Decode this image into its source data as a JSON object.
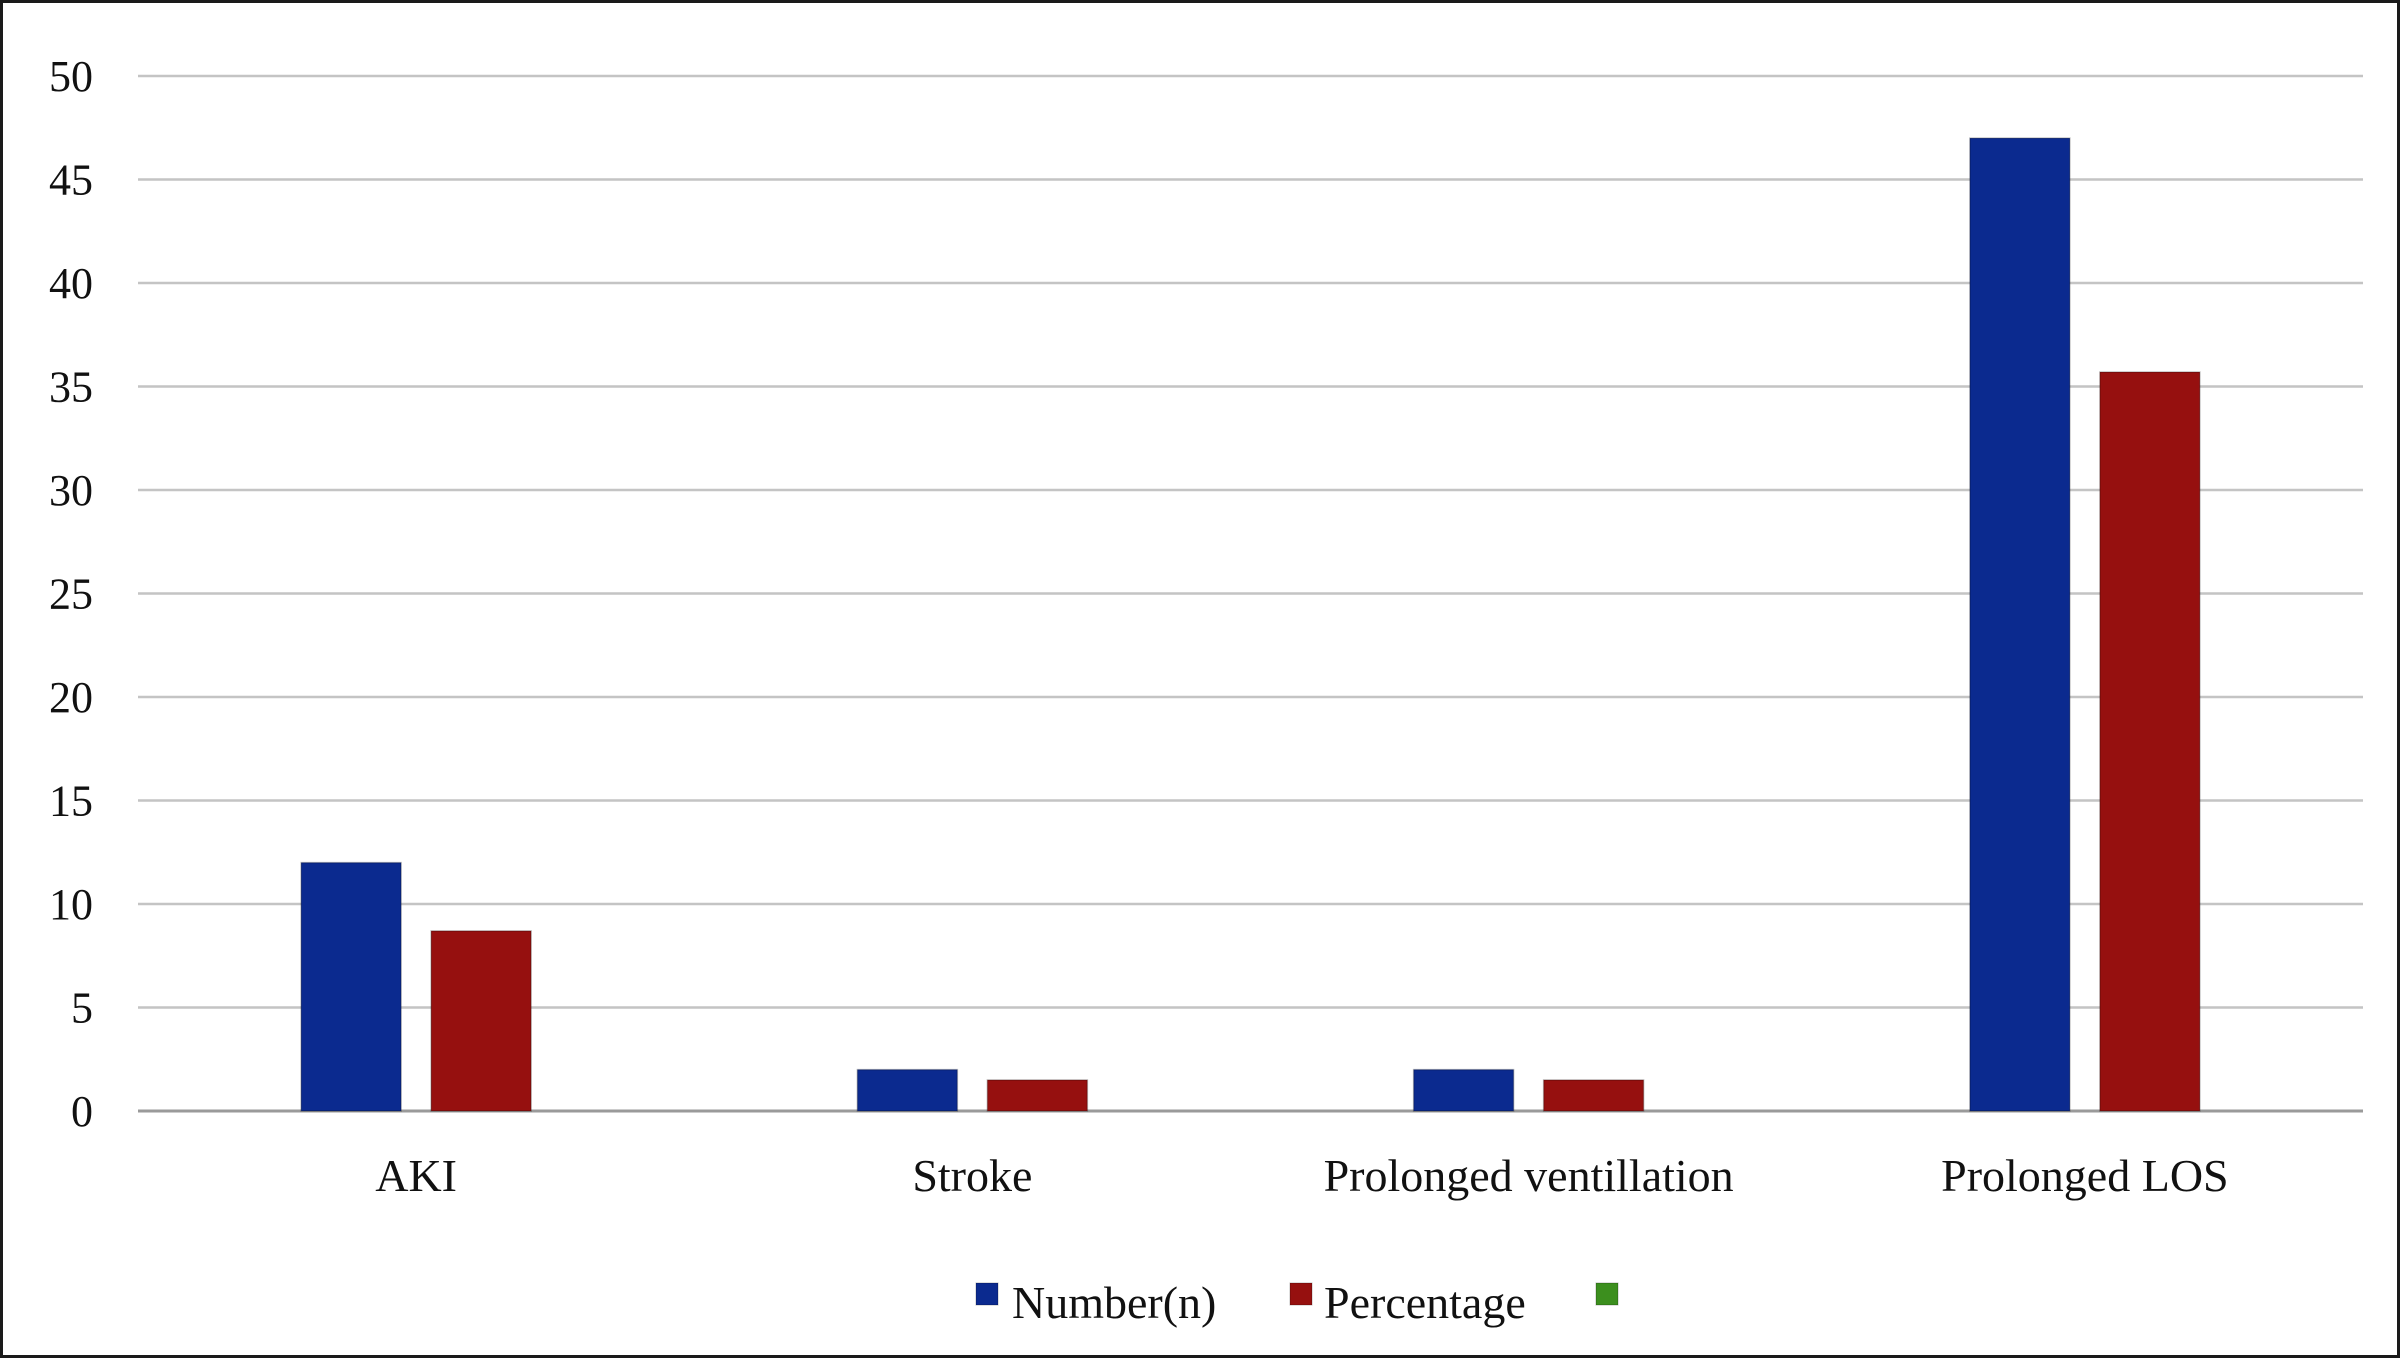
{
  "chart_data": {
    "type": "bar",
    "title": "",
    "xlabel": "",
    "ylabel": "",
    "categories": [
      "AKI",
      "Stroke",
      "Prolonged ventillation",
      "Prolonged LOS"
    ],
    "series": [
      {
        "name": "Number(n)",
        "color": "#0b2a8f",
        "values": [
          12,
          2,
          2,
          47
        ]
      },
      {
        "name": "Percentage",
        "color": "#96100f",
        "values": [
          8.7,
          1.5,
          1.5,
          35.7
        ]
      },
      {
        "name": "",
        "color": "#3c8f1e",
        "values": [
          0,
          0,
          0,
          0
        ]
      }
    ],
    "ylim": [
      0,
      50
    ],
    "yticks": [
      "0",
      "5",
      "10",
      "15",
      "20",
      "25",
      "30",
      "35",
      "40",
      "45",
      "50"
    ],
    "grid": true,
    "legend_position": "bottom-center"
  }
}
